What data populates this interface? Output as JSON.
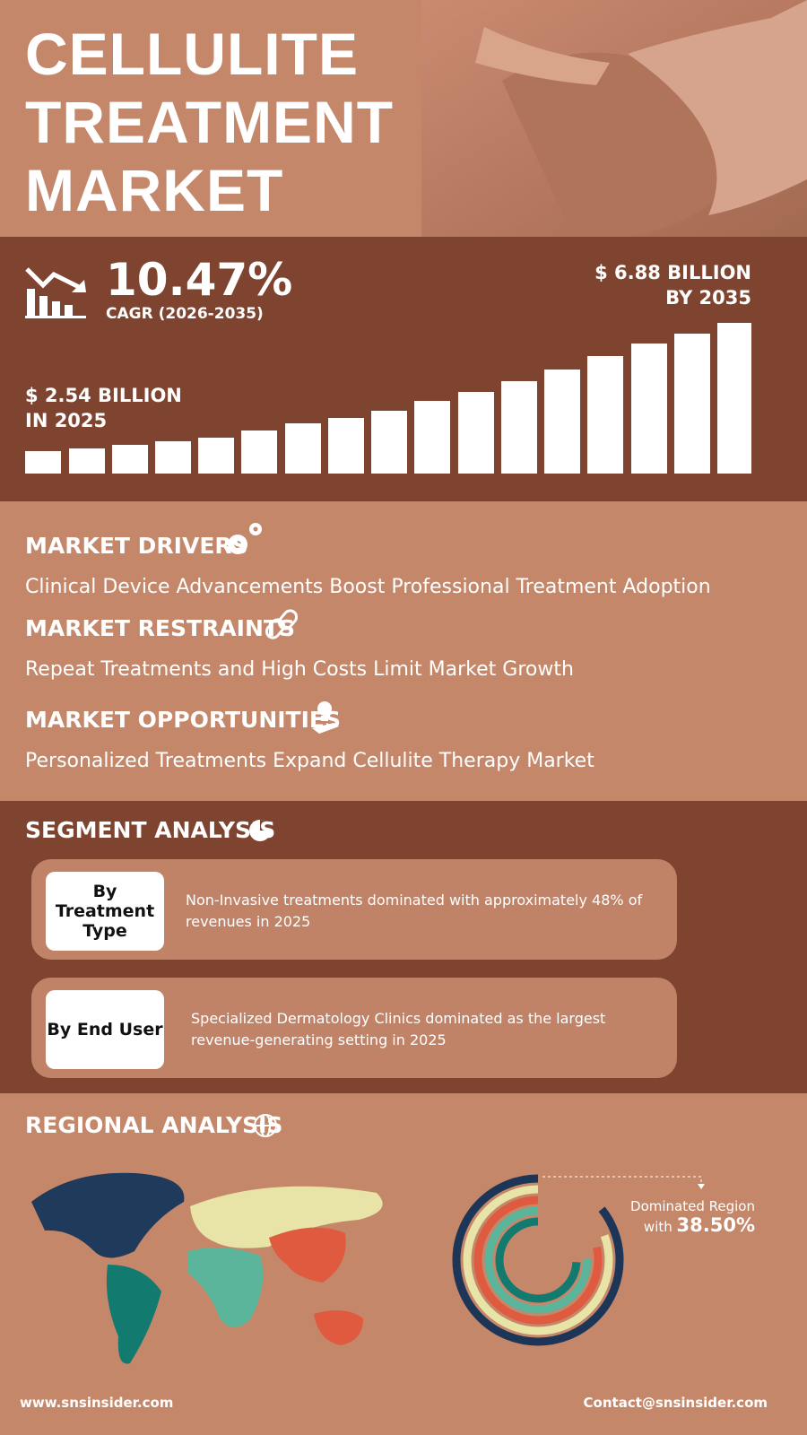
{
  "header": {
    "title_lines": [
      "CELLULITE",
      "TREATMENT",
      "MARKET"
    ]
  },
  "growth": {
    "cagr": "10.47%",
    "cagr_label": "CAGR (2026-2035)",
    "start": {
      "amount": "$ 2.54 BILLION",
      "year": "IN 2025"
    },
    "end": {
      "amount": "$ 6.88 BILLION",
      "year": "BY 2035"
    }
  },
  "dynamics": [
    {
      "heading": "MARKET DRIVERS",
      "text": "Clinical Device Advancements Boost Professional Treatment Adoption"
    },
    {
      "heading": "MARKET RESTRAINTS",
      "text": "Repeat Treatments and High Costs Limit Market Growth"
    },
    {
      "heading": "MARKET OPPORTUNITIES",
      "text": "Personalized Treatments Expand Cellulite Therapy Market"
    }
  ],
  "segments": {
    "heading": "SEGMENT ANALYSIS",
    "items": [
      {
        "label": "By Treatment Type",
        "text": "Non-Invasive treatments dominated with approximately 48% of revenues in 2025"
      },
      {
        "label": "By End User",
        "text": "Specialized Dermatology Clinics dominated as the largest revenue-generating setting in 2025"
      }
    ]
  },
  "regional": {
    "heading": "REGIONAL ANALYSIS",
    "note": "Dominated Region",
    "note_prefix": "with",
    "share": "38.50%"
  },
  "footer": {
    "website": "www.snsinsider.com",
    "contact": "Contact@snsinsider.com"
  }
}
